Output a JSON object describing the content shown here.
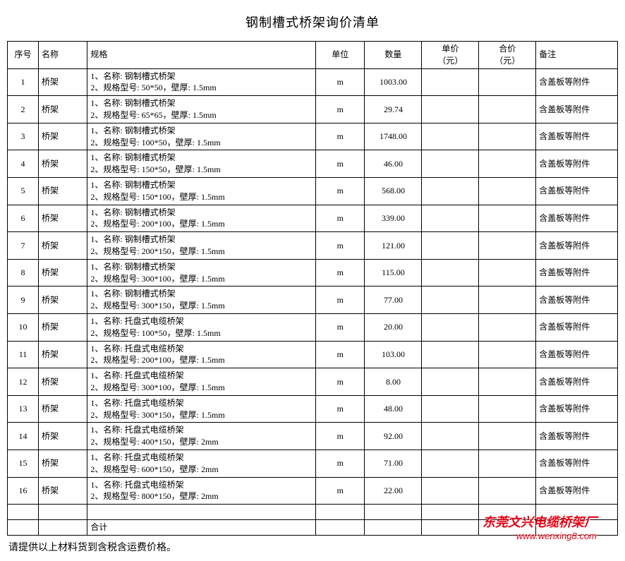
{
  "title": "钢制槽式桥架询价清单",
  "columns": {
    "seq": "序号",
    "name": "名称",
    "spec": "规格",
    "unit": "单位",
    "qty": "数量",
    "price": "单价\n（元）",
    "total": "合价\n（元）",
    "note": "备注"
  },
  "rows": [
    {
      "seq": "1",
      "name": "桥架",
      "spec1": "1、名称: 钢制槽式桥架",
      "spec2": "2、规格型号: 50*50，壁厚: 1.5mm",
      "unit": "m",
      "qty": "1003.00",
      "price": "",
      "total": "",
      "note": "含盖板等附件"
    },
    {
      "seq": "2",
      "name": "桥架",
      "spec1": "1、名称: 钢制槽式桥架",
      "spec2": "2、规格型号: 65*65，壁厚: 1.5mm",
      "unit": "m",
      "qty": "29.74",
      "price": "",
      "total": "",
      "note": "含盖板等附件"
    },
    {
      "seq": "3",
      "name": "桥架",
      "spec1": "1、名称: 钢制槽式桥架",
      "spec2": "2、规格型号: 100*50，壁厚: 1.5mm",
      "unit": "m",
      "qty": "1748.00",
      "price": "",
      "total": "",
      "note": "含盖板等附件"
    },
    {
      "seq": "4",
      "name": "桥架",
      "spec1": "1、名称: 钢制槽式桥架",
      "spec2": "2、规格型号: 150*50，壁厚: 1.5mm",
      "unit": "m",
      "qty": "46.00",
      "price": "",
      "total": "",
      "note": "含盖板等附件"
    },
    {
      "seq": "5",
      "name": "桥架",
      "spec1": "1、名称: 钢制槽式桥架",
      "spec2": "2、规格型号: 150*100，壁厚: 1.5mm",
      "unit": "m",
      "qty": "568.00",
      "price": "",
      "total": "",
      "note": "含盖板等附件"
    },
    {
      "seq": "6",
      "name": "桥架",
      "spec1": "1、名称: 钢制槽式桥架",
      "spec2": "2、规格型号: 200*100，壁厚: 1.5mm",
      "unit": "m",
      "qty": "339.00",
      "price": "",
      "total": "",
      "note": "含盖板等附件"
    },
    {
      "seq": "7",
      "name": "桥架",
      "spec1": "1、名称: 钢制槽式桥架",
      "spec2": "2、规格型号: 200*150，壁厚: 1.5mm",
      "unit": "m",
      "qty": "121.00",
      "price": "",
      "total": "",
      "note": "含盖板等附件"
    },
    {
      "seq": "8",
      "name": "桥架",
      "spec1": "1、名称: 钢制槽式桥架",
      "spec2": "2、规格型号: 300*100，壁厚: 1.5mm",
      "unit": "m",
      "qty": "115.00",
      "price": "",
      "total": "",
      "note": "含盖板等附件"
    },
    {
      "seq": "9",
      "name": "桥架",
      "spec1": "1、名称: 钢制槽式桥架",
      "spec2": "2、规格型号: 300*150，壁厚: 1.5mm",
      "unit": "m",
      "qty": "77.00",
      "price": "",
      "total": "",
      "note": "含盖板等附件"
    },
    {
      "seq": "10",
      "name": "桥架",
      "spec1": "1、名称: 托盘式电缆桥架",
      "spec2": "2、规格型号: 100*50，壁厚: 1.5mm",
      "unit": "m",
      "qty": "20.00",
      "price": "",
      "total": "",
      "note": "含盖板等附件"
    },
    {
      "seq": "11",
      "name": "桥架",
      "spec1": "1、名称: 托盘式电缆桥架",
      "spec2": "2、规格型号: 200*100，壁厚: 1.5mm",
      "unit": "m",
      "qty": "103.00",
      "price": "",
      "total": "",
      "note": "含盖板等附件"
    },
    {
      "seq": "12",
      "name": "桥架",
      "spec1": "1、名称: 托盘式电缆桥架",
      "spec2": "2、规格型号: 300*100，壁厚: 1.5mm",
      "unit": "m",
      "qty": "8.00",
      "price": "",
      "total": "",
      "note": "含盖板等附件"
    },
    {
      "seq": "13",
      "name": "桥架",
      "spec1": "1、名称: 托盘式电缆桥架",
      "spec2": "2、规格型号: 300*150，壁厚: 1.5mm",
      "unit": "m",
      "qty": "48.00",
      "price": "",
      "total": "",
      "note": "含盖板等附件"
    },
    {
      "seq": "14",
      "name": "桥架",
      "spec1": "1、名称: 托盘式电缆桥架",
      "spec2": "2、规格型号: 400*150，壁厚: 2mm",
      "unit": "m",
      "qty": "92.00",
      "price": "",
      "total": "",
      "note": "含盖板等附件"
    },
    {
      "seq": "15",
      "name": "桥架",
      "spec1": "1、名称: 托盘式电缆桥架",
      "spec2": "2、规格型号: 600*150，壁厚: 2mm",
      "unit": "m",
      "qty": "71.00",
      "price": "",
      "total": "",
      "note": "含盖板等附件"
    },
    {
      "seq": "16",
      "name": "桥架",
      "spec1": "1、名称: 托盘式电缆桥架",
      "spec2": "2、规格型号: 800*150，壁厚: 2mm",
      "unit": "m",
      "qty": "22.00",
      "price": "",
      "total": "",
      "note": "含盖板等附件"
    }
  ],
  "sum_label": "合计",
  "footer_note": "请提供以上材料货到含税含运费价格。",
  "watermark": {
    "line1": "东莞文兴电缆桥架厂",
    "line2": "www.wenxing8.com"
  },
  "style": {
    "border_color": "#000000",
    "bg": "#ffffff",
    "text_color": "#000000",
    "wm_color": "#e60012",
    "title_fontsize": 18,
    "body_fontsize": 12
  }
}
